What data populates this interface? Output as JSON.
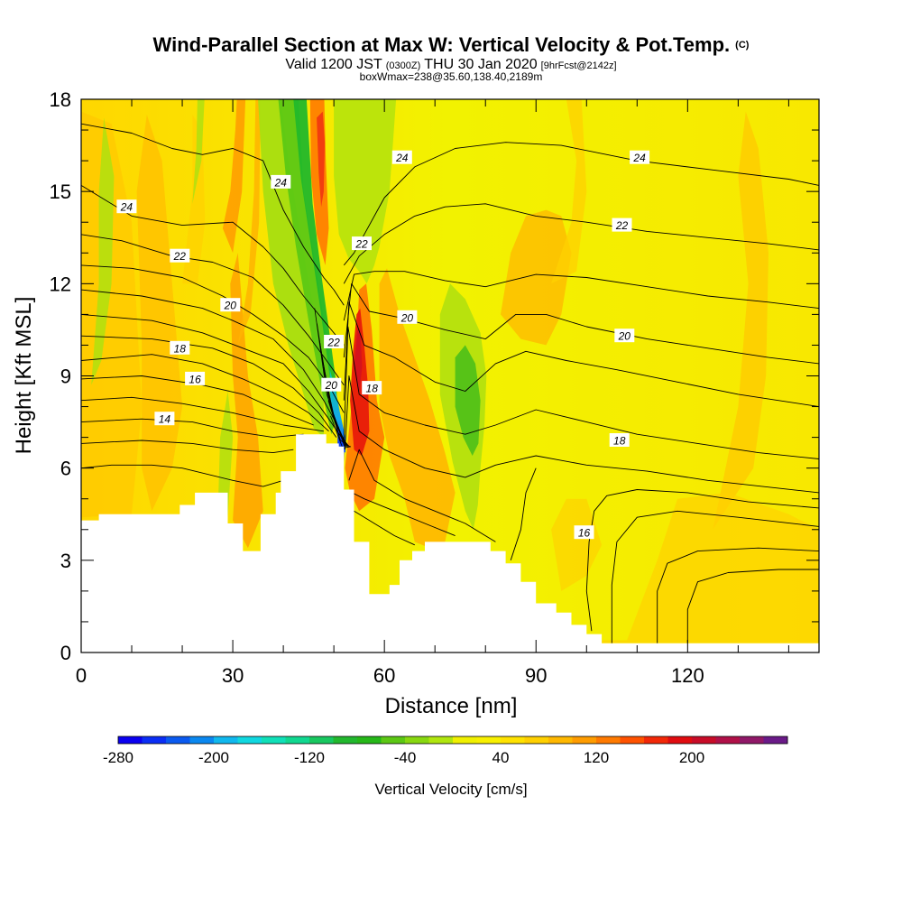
{
  "chart_data": {
    "type": "heatmap",
    "title": "Wind-Parallel Section at Max W: Vertical Velocity & Pot.Temp.",
    "title_mark": "(C)",
    "subtitle": {
      "valid": "Valid 1200 JST",
      "utc": "(0300Z)",
      "date": "THU 30 Jan 2020",
      "forecast": "[9hrFcst@2142z]"
    },
    "box_info": "boxWmax=238@35.60,138.40,2189m",
    "xlabel": "Distance [nm]",
    "ylabel": "Height [Kft MSL]",
    "xlim": [
      0,
      146
    ],
    "ylim": [
      0,
      18
    ],
    "x_ticks": [
      0,
      30,
      60,
      90,
      120
    ],
    "y_ticks": [
      0,
      3,
      6,
      9,
      12,
      15,
      18
    ],
    "colorbar": {
      "title": "Vertical Velocity [cm/s]",
      "tick_labels": [
        "-280",
        "-200",
        "-120",
        "-40",
        "40",
        "120",
        "200"
      ],
      "range": [
        -280,
        280
      ],
      "step": 20,
      "colors": [
        "#0a00f0",
        "#0a2ef5",
        "#0a5af0",
        "#0a88f0",
        "#10b8ee",
        "#10d8e0",
        "#10e0b8",
        "#10d890",
        "#18c860",
        "#22b82e",
        "#26b818",
        "#5cc814",
        "#88d810",
        "#b0e60e",
        "#f0f000",
        "#f8f000",
        "#ffe200",
        "#ffd000",
        "#ffb800",
        "#ff9c00",
        "#ff7a00",
        "#ff5200",
        "#f22808",
        "#e00c10",
        "#c80c28",
        "#b01048",
        "#901868",
        "#6a1a88"
      ]
    },
    "theta_contour_labels": [
      {
        "value": "24",
        "x": 9,
        "y": 14.5
      },
      {
        "value": "24",
        "x": 39.5,
        "y": 15.3
      },
      {
        "value": "24",
        "x": 63.5,
        "y": 16.1
      },
      {
        "value": "24",
        "x": 110.5,
        "y": 16.1
      },
      {
        "value": "22",
        "x": 19.5,
        "y": 12.9
      },
      {
        "value": "22",
        "x": 55.5,
        "y": 13.3
      },
      {
        "value": "22",
        "x": 107,
        "y": 13.9
      },
      {
        "value": "20",
        "x": 29.5,
        "y": 11.3
      },
      {
        "value": "20",
        "x": 64.5,
        "y": 10.9
      },
      {
        "value": "20",
        "x": 107.5,
        "y": 10.3
      },
      {
        "value": "22",
        "x": 50,
        "y": 10.1
      },
      {
        "value": "20",
        "x": 49.5,
        "y": 8.7
      },
      {
        "value": "18",
        "x": 19.5,
        "y": 9.9
      },
      {
        "value": "18",
        "x": 57.5,
        "y": 8.6
      },
      {
        "value": "18",
        "x": 106.5,
        "y": 6.9
      },
      {
        "value": "16",
        "x": 22.5,
        "y": 8.9
      },
      {
        "value": "16",
        "x": 99.5,
        "y": 3.9
      },
      {
        "value": "14",
        "x": 16.5,
        "y": 7.6
      }
    ],
    "terrain_profile": [
      [
        0,
        4.3
      ],
      [
        3.5,
        4.3
      ],
      [
        3.5,
        4.5
      ],
      [
        19.5,
        4.5
      ],
      [
        19.5,
        4.8
      ],
      [
        22.5,
        4.8
      ],
      [
        22.5,
        5.2
      ],
      [
        29,
        5.2
      ],
      [
        29,
        4.2
      ],
      [
        32,
        4.2
      ],
      [
        32,
        3.3
      ],
      [
        35.5,
        3.3
      ],
      [
        35.5,
        4.5
      ],
      [
        38.5,
        4.5
      ],
      [
        38.5,
        5.2
      ],
      [
        39.5,
        5.2
      ],
      [
        39.5,
        5.9
      ],
      [
        42.5,
        5.9
      ],
      [
        42.5,
        7.1
      ],
      [
        48.5,
        7.1
      ],
      [
        48.5,
        6.8
      ],
      [
        51,
        6.8
      ],
      [
        51,
        6.7
      ],
      [
        52,
        6.7
      ],
      [
        52,
        5.3
      ],
      [
        54,
        5.3
      ],
      [
        54,
        3.6
      ],
      [
        57,
        3.6
      ],
      [
        57,
        1.9
      ],
      [
        61,
        1.9
      ],
      [
        61,
        2.2
      ],
      [
        63,
        2.2
      ],
      [
        63,
        3.0
      ],
      [
        65.5,
        3.0
      ],
      [
        65.5,
        3.3
      ],
      [
        68,
        3.3
      ],
      [
        68,
        3.6
      ],
      [
        81,
        3.6
      ],
      [
        81,
        3.3
      ],
      [
        84,
        3.3
      ],
      [
        84,
        2.9
      ],
      [
        87,
        2.9
      ],
      [
        87,
        2.3
      ],
      [
        90,
        2.3
      ],
      [
        90,
        1.6
      ],
      [
        94,
        1.6
      ],
      [
        94,
        1.3
      ],
      [
        97,
        1.3
      ],
      [
        97,
        0.9
      ],
      [
        100,
        0.9
      ],
      [
        100,
        0.6
      ],
      [
        103,
        0.6
      ],
      [
        103,
        0.3
      ],
      [
        146,
        0.3
      ]
    ]
  }
}
